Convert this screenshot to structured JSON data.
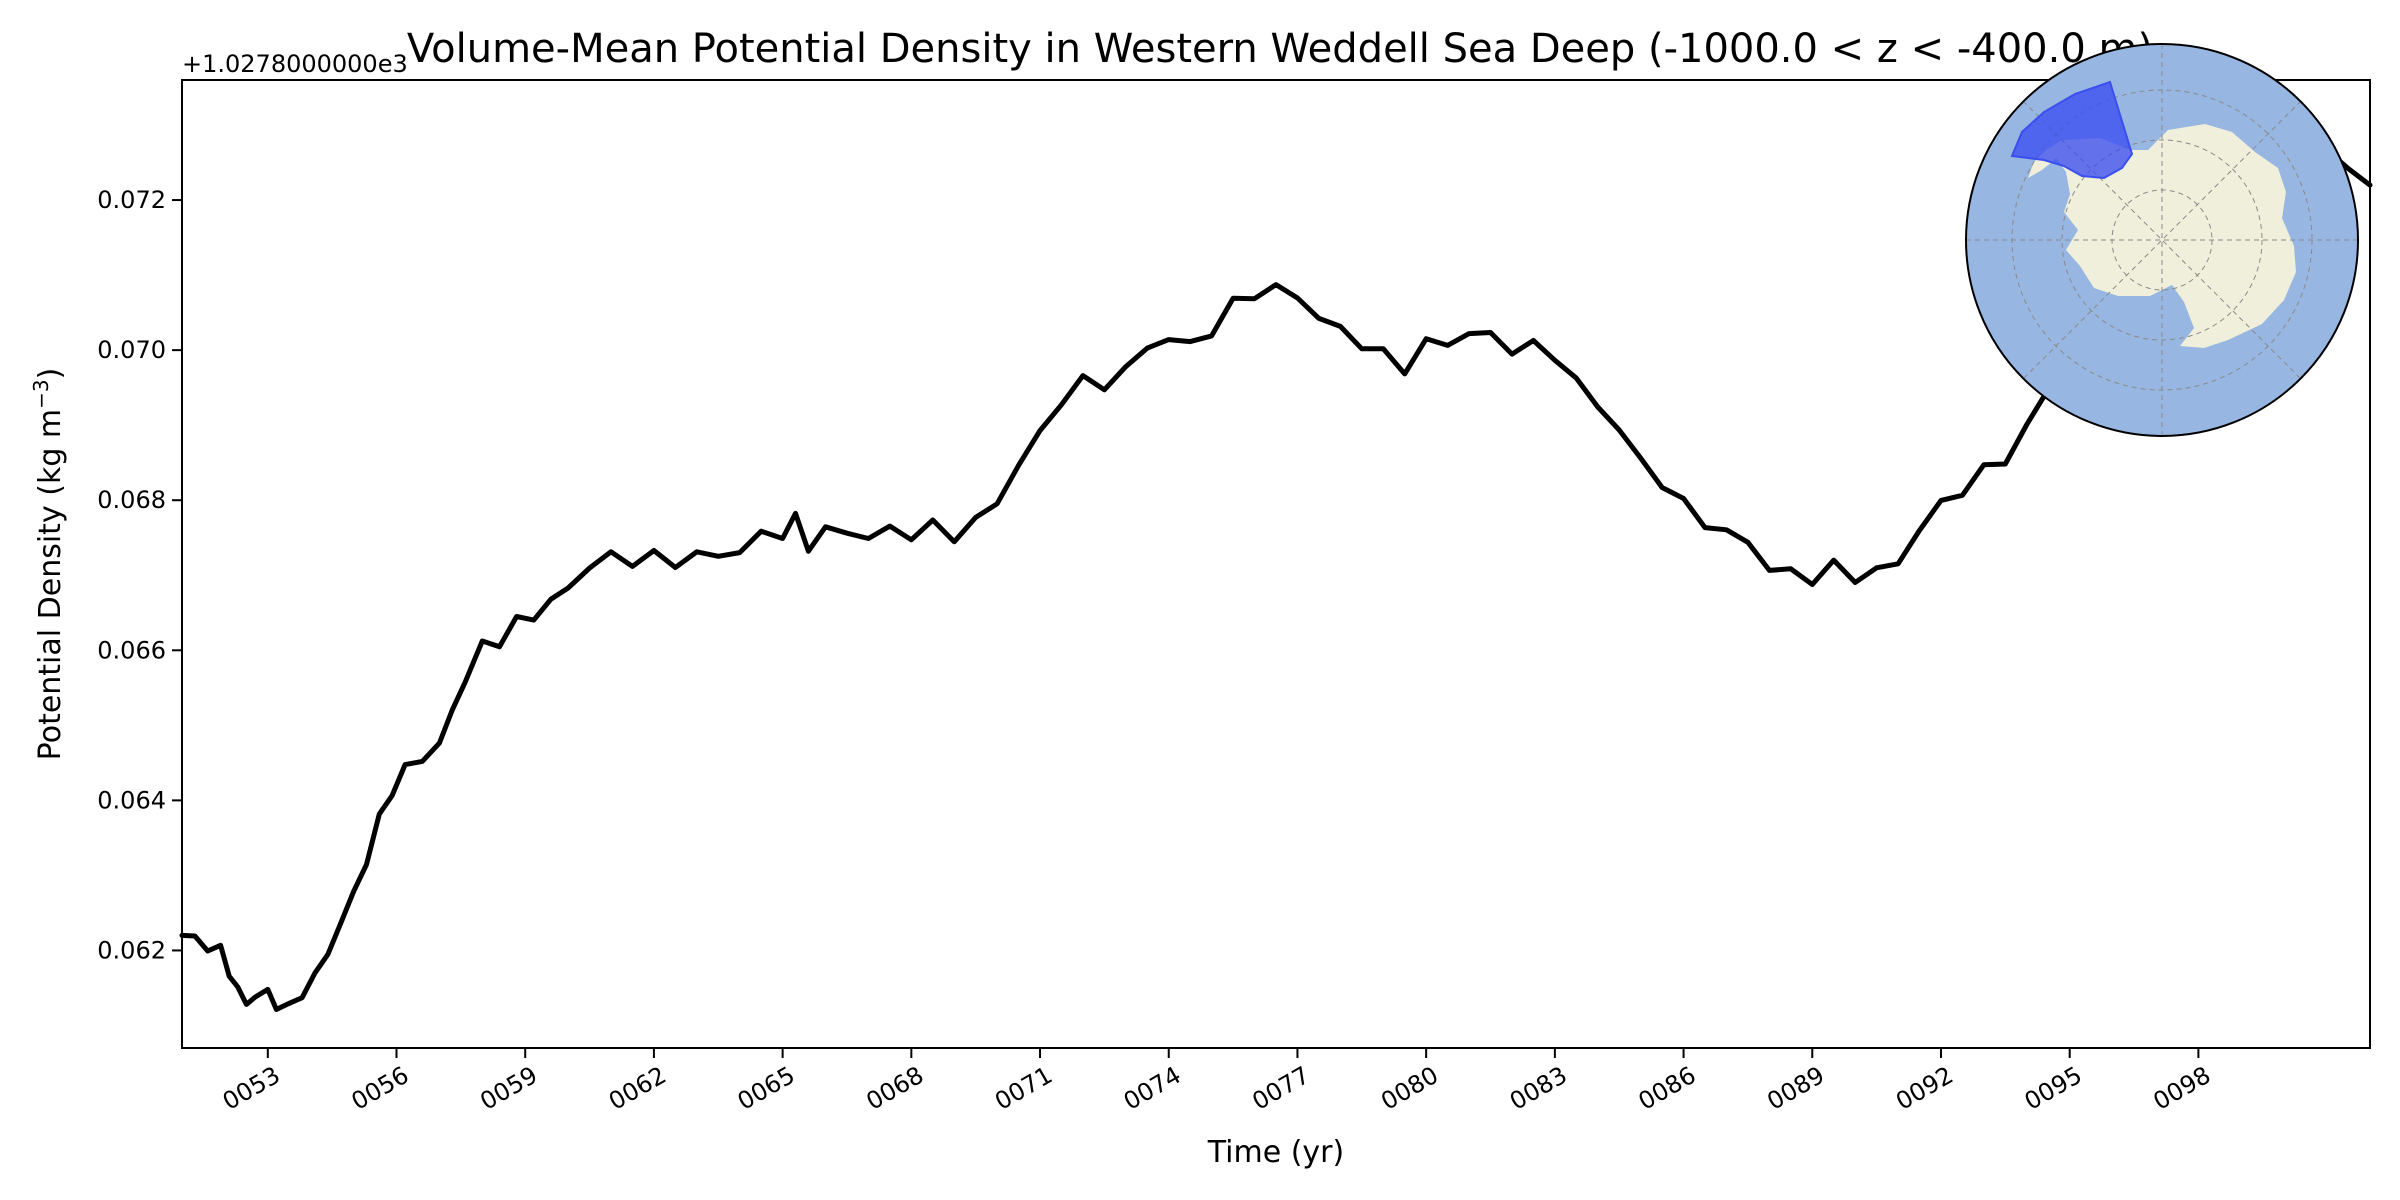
{
  "chart_data": {
    "type": "line",
    "title": "Volume-Mean Potential Density in Western Weddell Sea Deep (-1000.0 < z < -400.0 m)",
    "xlabel": "Time (yr)",
    "ylabel": "Potential Density (kg m",
    "ylabel_superscript": "−3",
    "ylabel_suffix": ")",
    "y_offset_text": "+1.0278000000e3",
    "xlim": [
      51.0,
      102.0
    ],
    "ylim": [
      0.0607,
      0.0736
    ],
    "x_ticks": [
      53,
      56,
      59,
      62,
      65,
      68,
      71,
      74,
      77,
      80,
      83,
      86,
      89,
      92,
      95,
      98
    ],
    "x_tick_labels": [
      "0053",
      "0056",
      "0059",
      "0062",
      "0065",
      "0068",
      "0071",
      "0074",
      "0077",
      "0080",
      "0083",
      "0086",
      "0089",
      "0092",
      "0095",
      "0098"
    ],
    "y_ticks": [
      0.062,
      0.064,
      0.066,
      0.068,
      0.07,
      0.072
    ],
    "y_tick_labels": [
      "0.062",
      "0.064",
      "0.066",
      "0.068",
      "0.070",
      "0.072"
    ],
    "grid": false,
    "series": [
      {
        "color": "#000000",
        "x": [
          51.0,
          51.3,
          51.6,
          51.9,
          52.1,
          52.3,
          52.5,
          52.7,
          53.0,
          53.2,
          53.5,
          53.8,
          54.1,
          54.4,
          54.7,
          55.0,
          55.3,
          55.6,
          55.9,
          56.2,
          56.6,
          57.0,
          57.3,
          57.6,
          58.0,
          58.4,
          58.8,
          59.2,
          59.6,
          60.0,
          60.5,
          61.0,
          61.5,
          62.0,
          62.5,
          63.0,
          63.5,
          64.0,
          64.5,
          65.0,
          65.3,
          65.6,
          66.0,
          66.5,
          67.0,
          67.5,
          68.0,
          68.5,
          69.0,
          69.5,
          70.0,
          70.5,
          71.0,
          71.5,
          72.0,
          72.5,
          73.0,
          73.5,
          74.0,
          74.5,
          75.0,
          75.5,
          76.0,
          76.5,
          77.0,
          77.5,
          78.0,
          78.5,
          79.0,
          79.5,
          80.0,
          80.5,
          81.0,
          81.5,
          82.0,
          82.5,
          83.0,
          83.5,
          84.0,
          84.5,
          85.0,
          85.5,
          86.0,
          86.5,
          87.0,
          87.5,
          88.0,
          88.5,
          89.0,
          89.5,
          90.0,
          90.5,
          91.0,
          91.5,
          92.0,
          92.5,
          93.0,
          93.5,
          94.0,
          94.5,
          95.0,
          95.5,
          96.0,
          96.5,
          97.0,
          97.5,
          98.0,
          98.5,
          99.0,
          99.5,
          100.0,
          100.5,
          101.0,
          101.5,
          102.0
        ],
        "y": [
          0.0622,
          0.0622,
          0.0621,
          0.062,
          0.0617,
          0.0614,
          0.0613,
          0.0614,
          0.0615,
          0.0613,
          0.0612,
          0.0614,
          0.0616,
          0.062,
          0.0624,
          0.0628,
          0.0632,
          0.0637,
          0.0641,
          0.0644,
          0.0646,
          0.0648,
          0.0652,
          0.0656,
          0.066,
          0.0661,
          0.0664,
          0.0665,
          0.0667,
          0.0668,
          0.0671,
          0.0672,
          0.0672,
          0.0673,
          0.0672,
          0.0673,
          0.0672,
          0.0673,
          0.0675,
          0.0676,
          0.0678,
          0.0674,
          0.0676,
          0.0675,
          0.0675,
          0.0676,
          0.0676,
          0.0677,
          0.0675,
          0.0677,
          0.0679,
          0.0685,
          0.0689,
          0.0694,
          0.0696,
          0.0695,
          0.0697,
          0.07,
          0.0702,
          0.0701,
          0.0703,
          0.0706,
          0.0707,
          0.0708,
          0.0707,
          0.0705,
          0.0703,
          0.0701,
          0.0699,
          0.0697,
          0.0701,
          0.0701,
          0.0703,
          0.0702,
          0.07,
          0.07,
          0.0699,
          0.0696,
          0.0693,
          0.069,
          0.0685,
          0.0682,
          0.0679,
          0.0677,
          0.0676,
          0.0675,
          0.0671,
          0.067,
          0.0669,
          0.0671,
          0.067,
          0.0671,
          0.0672,
          0.0676,
          0.0679,
          0.0681,
          0.0684,
          0.0686,
          0.069,
          0.0695,
          0.07,
          0.0705,
          0.071,
          0.0716,
          0.072,
          0.0724,
          0.0727,
          0.0729,
          0.0729,
          0.073,
          0.0728,
          0.0726,
          0.0726,
          0.0724,
          0.0722
        ]
      }
    ]
  },
  "inset": {
    "ocean_color": "#97b6e1",
    "land_color": "#efefdb",
    "region_color": "#3b4ef0",
    "gridline_color": "#8a8a8a"
  }
}
